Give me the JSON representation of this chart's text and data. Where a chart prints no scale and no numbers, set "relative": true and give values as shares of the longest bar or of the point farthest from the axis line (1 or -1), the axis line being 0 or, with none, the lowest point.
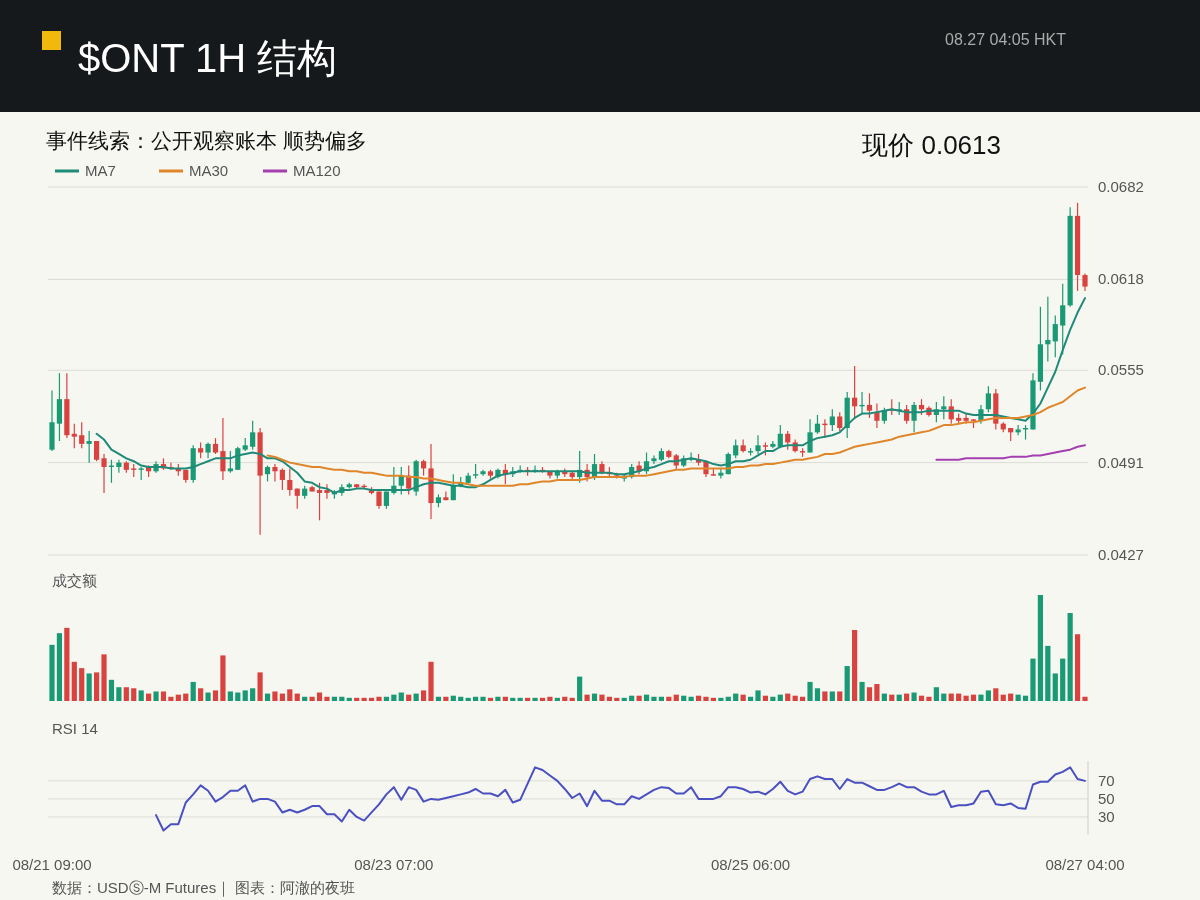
{
  "chart_data": [
    {
      "type": "candlestick",
      "title": "$ONT 1H 结构",
      "subtitle": "事件线索：公开观察账本 顺势偏多",
      "annotations": [
        "08.27 04:05 HKT",
        "现价 0.0613"
      ],
      "categories": [
        null,
        null,
        null,
        null,
        null,
        null,
        null,
        null,
        null,
        null,
        null,
        null,
        null,
        null,
        null,
        null,
        null,
        null,
        null,
        null,
        null,
        null,
        null,
        null,
        null,
        null,
        null,
        null,
        null,
        null,
        null,
        null,
        null,
        null,
        null,
        null,
        null,
        null,
        null,
        null,
        null,
        null,
        null,
        null,
        null,
        null,
        null,
        null,
        null,
        null,
        null,
        null,
        null,
        null,
        null,
        null,
        null,
        null,
        null,
        null,
        null,
        null,
        null,
        null,
        null,
        null,
        null,
        null,
        null,
        null,
        null,
        null,
        null,
        null,
        null,
        null,
        null,
        null,
        null,
        null,
        null,
        null,
        null,
        null,
        null,
        null,
        null,
        null,
        null,
        null,
        null,
        null,
        null,
        null,
        null,
        null,
        null,
        null,
        null,
        null,
        null,
        null,
        null,
        null,
        null,
        null,
        null,
        null,
        null,
        null,
        null,
        null,
        null,
        null,
        null,
        null,
        null,
        null,
        null,
        null,
        null,
        null,
        null,
        null,
        null,
        null,
        null,
        null,
        null,
        null,
        null,
        null,
        null,
        null,
        null,
        null,
        null,
        null,
        null,
        null
      ],
      "ohlc": [
        [
          0.05,
          0.0541,
          0.0499,
          0.0519
        ],
        [
          0.0518,
          0.0553,
          0.0506,
          0.0535
        ],
        [
          0.0535,
          0.0553,
          0.0508,
          0.051
        ],
        [
          0.0511,
          0.0518,
          0.0501,
          0.0509
        ],
        [
          0.051,
          0.0519,
          0.0501,
          0.0504
        ],
        [
          0.0504,
          0.0513,
          0.0491,
          0.0506
        ],
        [
          0.0506,
          0.0506,
          0.0492,
          0.0493
        ],
        [
          0.0494,
          0.0497,
          0.047,
          0.0488
        ],
        [
          0.0488,
          0.0493,
          0.0477,
          0.0489
        ],
        [
          0.0488,
          0.0493,
          0.0484,
          0.0491
        ],
        [
          0.0491,
          0.0492,
          0.0484,
          0.0486
        ],
        [
          0.0487,
          0.049,
          0.0481,
          0.0486
        ],
        [
          0.0486,
          0.0488,
          0.0479,
          0.0487
        ],
        [
          0.0488,
          0.0489,
          0.0481,
          0.0485
        ],
        [
          0.0485,
          0.0492,
          0.0484,
          0.049
        ],
        [
          0.049,
          0.0494,
          0.0486,
          0.0487
        ],
        [
          0.0488,
          0.0491,
          0.0486,
          0.0487
        ],
        [
          0.0487,
          0.049,
          0.0482,
          0.0485
        ],
        [
          0.0486,
          0.0486,
          0.0477,
          0.0479
        ],
        [
          0.0479,
          0.0503,
          0.0477,
          0.0501
        ],
        [
          0.0501,
          0.0505,
          0.0494,
          0.0498
        ],
        [
          0.0498,
          0.0505,
          0.0494,
          0.0504
        ],
        [
          0.0504,
          0.0508,
          0.0497,
          0.0498
        ],
        [
          0.0499,
          0.0522,
          0.0479,
          0.0485
        ],
        [
          0.0485,
          0.0499,
          0.0484,
          0.0487
        ],
        [
          0.0486,
          0.0502,
          0.0486,
          0.0501
        ],
        [
          0.05,
          0.0508,
          0.0499,
          0.0503
        ],
        [
          0.0502,
          0.052,
          0.05,
          0.0512
        ],
        [
          0.0512,
          0.0515,
          0.0441,
          0.0482
        ],
        [
          0.0483,
          0.0489,
          0.0478,
          0.0488
        ],
        [
          0.0488,
          0.049,
          0.0478,
          0.0485
        ],
        [
          0.0486,
          0.0487,
          0.0472,
          0.0479
        ],
        [
          0.0479,
          0.0487,
          0.0468,
          0.0472
        ],
        [
          0.0473,
          0.0473,
          0.0459,
          0.0468
        ],
        [
          0.0468,
          0.0475,
          0.0466,
          0.0473
        ],
        [
          0.0474,
          0.0475,
          0.0471,
          0.0471
        ],
        [
          0.0472,
          0.0477,
          0.0451,
          0.047
        ],
        [
          0.0472,
          0.0476,
          0.0466,
          0.047
        ],
        [
          0.0469,
          0.0472,
          0.0466,
          0.0471
        ],
        [
          0.047,
          0.0476,
          0.0468,
          0.0474
        ],
        [
          0.0474,
          0.0477,
          0.0473,
          0.0476
        ],
        [
          0.0476,
          0.0476,
          0.0473,
          0.0474
        ],
        [
          0.0475,
          0.0476,
          0.0473,
          0.0474
        ],
        [
          0.0472,
          0.0474,
          0.0469,
          0.047
        ],
        [
          0.0471,
          0.0471,
          0.0459,
          0.0461
        ],
        [
          0.0461,
          0.0471,
          0.0459,
          0.0471
        ],
        [
          0.047,
          0.0488,
          0.0469,
          0.0475
        ],
        [
          0.0475,
          0.0488,
          0.0469,
          0.0482
        ],
        [
          0.0482,
          0.0489,
          0.0469,
          0.0473
        ],
        [
          0.0471,
          0.0493,
          0.0468,
          0.0492
        ],
        [
          0.0492,
          0.0493,
          0.0482,
          0.0487
        ],
        [
          0.0487,
          0.0504,
          0.0452,
          0.0463
        ],
        [
          0.0463,
          0.0469,
          0.046,
          0.0467
        ],
        [
          0.0467,
          0.0471,
          0.0465,
          0.0465
        ],
        [
          0.0465,
          0.0483,
          0.0465,
          0.0475
        ],
        [
          0.0475,
          0.0481,
          0.0474,
          0.0477
        ],
        [
          0.0477,
          0.0484,
          0.0476,
          0.0482
        ],
        [
          0.0482,
          0.049,
          0.048,
          0.0483
        ],
        [
          0.0483,
          0.0486,
          0.0482,
          0.0485
        ],
        [
          0.0485,
          0.0486,
          0.048,
          0.0482
        ],
        [
          0.0481,
          0.0487,
          0.048,
          0.0486
        ],
        [
          0.0486,
          0.049,
          0.0476,
          0.0483
        ],
        [
          0.0483,
          0.0488,
          0.0481,
          0.0485
        ],
        [
          0.0485,
          0.0489,
          0.0484,
          0.0486
        ],
        [
          0.0486,
          0.0488,
          0.0482,
          0.0485
        ],
        [
          0.0485,
          0.0489,
          0.0484,
          0.0486
        ],
        [
          0.0486,
          0.0488,
          0.0484,
          0.0485
        ],
        [
          0.0485,
          0.0485,
          0.048,
          0.0482
        ],
        [
          0.0482,
          0.0486,
          0.048,
          0.0485
        ],
        [
          0.0485,
          0.0487,
          0.0481,
          0.0483
        ],
        [
          0.0484,
          0.0485,
          0.0479,
          0.0481
        ],
        [
          0.0481,
          0.0499,
          0.0477,
          0.0486
        ],
        [
          0.0486,
          0.049,
          0.0478,
          0.0481
        ],
        [
          0.0481,
          0.0497,
          0.0479,
          0.049
        ],
        [
          0.049,
          0.0492,
          0.0483,
          0.0484
        ],
        [
          0.0484,
          0.0488,
          0.0481,
          0.0483
        ],
        [
          0.0483,
          0.0484,
          0.048,
          0.0482
        ],
        [
          0.048,
          0.0483,
          0.0478,
          0.0482
        ],
        [
          0.0481,
          0.049,
          0.048,
          0.0488
        ],
        [
          0.0489,
          0.0492,
          0.0483,
          0.0485
        ],
        [
          0.0485,
          0.0498,
          0.0483,
          0.0492
        ],
        [
          0.0492,
          0.0496,
          0.049,
          0.0494
        ],
        [
          0.0493,
          0.0501,
          0.0492,
          0.0499
        ],
        [
          0.0499,
          0.05,
          0.0494,
          0.0495
        ],
        [
          0.0496,
          0.0497,
          0.0486,
          0.0489
        ],
        [
          0.0489,
          0.0496,
          0.0488,
          0.0494
        ],
        [
          0.0493,
          0.0498,
          0.0492,
          0.0494
        ],
        [
          0.0493,
          0.0497,
          0.0489,
          0.0491
        ],
        [
          0.0492,
          0.0492,
          0.0481,
          0.0483
        ],
        [
          0.0483,
          0.0487,
          0.0482,
          0.0482
        ],
        [
          0.0482,
          0.0487,
          0.048,
          0.0484
        ],
        [
          0.0483,
          0.0498,
          0.0483,
          0.0497
        ],
        [
          0.0496,
          0.0507,
          0.0494,
          0.0503
        ],
        [
          0.0503,
          0.0507,
          0.0498,
          0.0499
        ],
        [
          0.0498,
          0.0501,
          0.0496,
          0.0499
        ],
        [
          0.0499,
          0.051,
          0.0497,
          0.0503
        ],
        [
          0.0503,
          0.0505,
          0.0496,
          0.0502
        ],
        [
          0.0502,
          0.0506,
          0.0501,
          0.0504
        ],
        [
          0.0502,
          0.0517,
          0.0501,
          0.0511
        ],
        [
          0.0511,
          0.0513,
          0.05,
          0.0505
        ],
        [
          0.0505,
          0.0507,
          0.0498,
          0.0499
        ],
        [
          0.0499,
          0.0501,
          0.0495,
          0.0498
        ],
        [
          0.0498,
          0.0521,
          0.0498,
          0.0512
        ],
        [
          0.0512,
          0.0524,
          0.0511,
          0.0518
        ],
        [
          0.0518,
          0.0521,
          0.0508,
          0.0517
        ],
        [
          0.0517,
          0.0528,
          0.0513,
          0.0523
        ],
        [
          0.0523,
          0.0526,
          0.0513,
          0.0515
        ],
        [
          0.0515,
          0.054,
          0.0508,
          0.0536
        ],
        [
          0.0536,
          0.0558,
          0.0521,
          0.053
        ],
        [
          0.053,
          0.054,
          0.0525,
          0.0531
        ],
        [
          0.0531,
          0.0539,
          0.0522,
          0.0527
        ],
        [
          0.0526,
          0.0532,
          0.0515,
          0.052
        ],
        [
          0.052,
          0.0529,
          0.0518,
          0.0527
        ],
        [
          0.0528,
          0.0535,
          0.0524,
          0.0527
        ],
        [
          0.0527,
          0.0533,
          0.0524,
          0.0528
        ],
        [
          0.0528,
          0.0531,
          0.0518,
          0.052
        ],
        [
          0.052,
          0.0533,
          0.0512,
          0.0531
        ],
        [
          0.0531,
          0.0535,
          0.0524,
          0.0528
        ],
        [
          0.0529,
          0.053,
          0.0523,
          0.0524
        ],
        [
          0.0524,
          0.0533,
          0.0519,
          0.0528
        ],
        [
          0.0528,
          0.0537,
          0.0521,
          0.053
        ],
        [
          0.053,
          0.0535,
          0.0518,
          0.0521
        ],
        [
          0.0522,
          0.0525,
          0.0518,
          0.052
        ],
        [
          0.0522,
          0.0525,
          0.0518,
          0.052
        ],
        [
          0.0521,
          0.0521,
          0.0515,
          0.052
        ],
        [
          0.052,
          0.0531,
          0.0518,
          0.0528
        ],
        [
          0.0528,
          0.0544,
          0.0526,
          0.0539
        ],
        [
          0.0539,
          0.0542,
          0.0514,
          0.0518
        ],
        [
          0.0518,
          0.0519,
          0.0512,
          0.0514
        ],
        [
          0.0515,
          0.0515,
          0.0506,
          0.0512
        ],
        [
          0.0512,
          0.0517,
          0.051,
          0.0514
        ],
        [
          0.0514,
          0.0517,
          0.0507,
          0.0515
        ],
        [
          0.0514,
          0.0553,
          0.0514,
          0.0548
        ],
        [
          0.0547,
          0.0599,
          0.0541,
          0.0573
        ],
        [
          0.0573,
          0.0606,
          0.0561,
          0.0576
        ],
        [
          0.0575,
          0.0593,
          0.0564,
          0.0587
        ],
        [
          0.0586,
          0.0615,
          0.0566,
          0.06
        ],
        [
          0.06,
          0.0668,
          0.0599,
          0.0662
        ],
        [
          0.0662,
          0.0671,
          0.061,
          0.0621
        ],
        [
          0.0621,
          0.0622,
          0.061,
          0.0613
        ]
      ],
      "colors": [
        "#1a9a74",
        "#1a9a74",
        "#d9433f",
        "#d9433f",
        "#d9433f",
        "#1a9a74",
        "#d9433f",
        "#d9433f",
        "#1a9a74",
        "#1a9a74",
        "#d9433f",
        "#d9433f",
        "#1a9a74",
        "#d9433f",
        "#1a9a74",
        "#d9433f",
        "#d9433f",
        "#d9433f",
        "#d9433f",
        "#1a9a74",
        "#d9433f",
        "#1a9a74",
        "#d9433f",
        "#d9433f",
        "#1a9a74",
        "#1a9a74",
        "#1a9a74",
        "#1a9a74",
        "#d9433f",
        "#1a9a74",
        "#d9433f",
        "#d9433f",
        "#d9433f",
        "#d9433f",
        "#1a9a74",
        "#d9433f",
        "#d9433f",
        "#d9433f",
        "#1a9a74",
        "#1a9a74",
        "#1a9a74",
        "#d9433f",
        "#d9433f",
        "#d9433f",
        "#d9433f",
        "#1a9a74",
        "#1a9a74",
        "#1a9a74",
        "#d9433f",
        "#1a9a74",
        "#d9433f",
        "#d9433f",
        "#1a9a74",
        "#d9433f",
        "#1a9a74",
        "#1a9a74",
        "#1a9a74",
        "#1a9a74",
        "#1a9a74",
        "#d9433f",
        "#1a9a74",
        "#d9433f",
        "#1a9a74",
        "#1a9a74",
        "#d9433f",
        "#1a9a74",
        "#d9433f",
        "#d9433f",
        "#1a9a74",
        "#d9433f",
        "#d9433f",
        "#1a9a74",
        "#d9433f",
        "#1a9a74",
        "#d9433f",
        "#d9433f",
        "#d9433f",
        "#1a9a74",
        "#1a9a74",
        "#d9433f",
        "#1a9a74",
        "#1a9a74",
        "#1a9a74",
        "#d9433f",
        "#d9433f",
        "#1a9a74",
        "#1a9a74",
        "#d9433f",
        "#d9433f",
        "#d9433f",
        "#1a9a74",
        "#1a9a74",
        "#1a9a74",
        "#d9433f",
        "#1a9a74",
        "#1a9a74",
        "#d9433f",
        "#1a9a74",
        "#1a9a74",
        "#d9433f",
        "#d9433f",
        "#d9433f",
        "#1a9a74",
        "#1a9a74",
        "#d9433f",
        "#1a9a74",
        "#d9433f",
        "#1a9a74",
        "#d9433f",
        "#1a9a74",
        "#d9433f",
        "#d9433f",
        "#1a9a74",
        "#d9433f",
        "#1a9a74",
        "#d9433f",
        "#1a9a74",
        "#d9433f",
        "#d9433f",
        "#1a9a74",
        "#1a9a74",
        "#d9433f",
        "#d9433f",
        "#d9433f",
        "#d9433f",
        "#1a9a74",
        "#1a9a74",
        "#d9433f",
        "#d9433f",
        "#d9433f",
        "#1a9a74",
        "#1a9a74",
        "#1a9a74",
        "#1a9a74",
        "#1a9a74",
        "#1a9a74",
        "#1a9a74",
        "#1a9a74",
        "#d9433f",
        "#d9433f"
      ],
      "series": [
        {
          "name": "MA7",
          "type": "line",
          "color": "#1f8a78",
          "values": [
            null,
            null,
            null,
            null,
            null,
            null,
            0.0511,
            0.0507,
            0.05,
            0.0497,
            0.0494,
            0.0492,
            0.0489,
            0.0488,
            0.0488,
            0.0488,
            0.0487,
            0.0487,
            0.0487,
            0.0488,
            0.049,
            0.0492,
            0.0494,
            0.0494,
            0.0494,
            0.0496,
            0.0497,
            0.0498,
            0.0497,
            0.0494,
            0.0494,
            0.0492,
            0.0488,
            0.0484,
            0.0478,
            0.0477,
            0.0474,
            0.0473,
            0.047,
            0.0472,
            0.0472,
            0.0473,
            0.0473,
            0.0472,
            0.0472,
            0.0472,
            0.0472,
            0.0472,
            0.0472,
            0.0474,
            0.0476,
            0.0477,
            0.0477,
            0.0476,
            0.0475,
            0.0475,
            0.0474,
            0.0474,
            0.0476,
            0.0479,
            0.0482,
            0.0483,
            0.0484,
            0.0485,
            0.0485,
            0.0485,
            0.0485,
            0.0485,
            0.0485,
            0.0485,
            0.0485,
            0.0485,
            0.0484,
            0.0484,
            0.0484,
            0.0484,
            0.0483,
            0.0483,
            0.0484,
            0.0485,
            0.0487,
            0.0488,
            0.049,
            0.0492,
            0.0492,
            0.0493,
            0.0494,
            0.0493,
            0.0492,
            0.049,
            0.0489,
            0.049,
            0.0492,
            0.0492,
            0.0493,
            0.0496,
            0.0499,
            0.0499,
            0.0502,
            0.0503,
            0.0503,
            0.0503,
            0.0506,
            0.0508,
            0.0509,
            0.051,
            0.0512,
            0.0517,
            0.0522,
            0.0525,
            0.0525,
            0.0526,
            0.0527,
            0.0528,
            0.0527,
            0.0526,
            0.0526,
            0.0526,
            0.0527,
            0.0527,
            0.0527,
            0.0527,
            0.0527,
            0.0525,
            0.0524,
            0.0524,
            0.0524,
            0.0524,
            0.0523,
            0.0522,
            0.0521,
            0.052,
            0.0525,
            0.0532,
            0.0543,
            0.0554,
            0.0569,
            0.0583,
            0.0595,
            0.0605
          ]
        },
        {
          "name": "MA30",
          "type": "line",
          "color": "#e0862a",
          "values": [
            null,
            null,
            null,
            null,
            null,
            null,
            null,
            null,
            null,
            null,
            null,
            null,
            null,
            null,
            null,
            null,
            null,
            null,
            null,
            null,
            null,
            null,
            null,
            null,
            null,
            null,
            null,
            null,
            null,
            0.0496,
            0.0495,
            0.0493,
            0.0491,
            0.049,
            0.0489,
            0.0488,
            0.0488,
            0.0487,
            0.0486,
            0.0486,
            0.0485,
            0.0485,
            0.0484,
            0.0484,
            0.0483,
            0.0482,
            0.0482,
            0.0482,
            0.0481,
            0.0481,
            0.048,
            0.048,
            0.0479,
            0.0478,
            0.0477,
            0.0477,
            0.0476,
            0.0475,
            0.0475,
            0.0475,
            0.0475,
            0.0475,
            0.0475,
            0.0476,
            0.0476,
            0.0477,
            0.0478,
            0.0478,
            0.0479,
            0.0479,
            0.0479,
            0.0479,
            0.048,
            0.0481,
            0.0481,
            0.0481,
            0.0481,
            0.0481,
            0.0482,
            0.0482,
            0.0482,
            0.0483,
            0.0484,
            0.0485,
            0.0486,
            0.0486,
            0.0487,
            0.0487,
            0.0487,
            0.0487,
            0.0487,
            0.0487,
            0.0488,
            0.0488,
            0.0489,
            0.0489,
            0.049,
            0.049,
            0.0491,
            0.0492,
            0.0493,
            0.0493,
            0.0494,
            0.0495,
            0.0497,
            0.0497,
            0.0498,
            0.05,
            0.0502,
            0.0503,
            0.0504,
            0.0505,
            0.0506,
            0.0507,
            0.0509,
            0.051,
            0.0511,
            0.0512,
            0.0513,
            0.0515,
            0.0517,
            0.0517,
            0.0518,
            0.0519,
            0.0519,
            0.052,
            0.0521,
            0.0522,
            0.0522,
            0.0522,
            0.0522,
            0.0523,
            0.0524,
            0.0526,
            0.0529,
            0.0531,
            0.0533,
            0.0537,
            0.0541,
            0.0543
          ]
        },
        {
          "name": "MA120",
          "type": "line",
          "color": "#a43fb0",
          "values": [
            null,
            null,
            null,
            null,
            null,
            null,
            null,
            null,
            null,
            null,
            null,
            null,
            null,
            null,
            null,
            null,
            null,
            null,
            null,
            null,
            null,
            null,
            null,
            null,
            null,
            null,
            null,
            null,
            null,
            null,
            null,
            null,
            null,
            null,
            null,
            null,
            null,
            null,
            null,
            null,
            null,
            null,
            null,
            null,
            null,
            null,
            null,
            null,
            null,
            null,
            null,
            null,
            null,
            null,
            null,
            null,
            null,
            null,
            null,
            null,
            null,
            null,
            null,
            null,
            null,
            null,
            null,
            null,
            null,
            null,
            null,
            null,
            null,
            null,
            null,
            null,
            null,
            null,
            null,
            null,
            null,
            null,
            null,
            null,
            null,
            null,
            null,
            null,
            null,
            null,
            null,
            null,
            null,
            null,
            null,
            null,
            null,
            null,
            null,
            null,
            null,
            null,
            null,
            null,
            null,
            null,
            null,
            null,
            null,
            null,
            null,
            null,
            null,
            null,
            null,
            null,
            null,
            null,
            null,
            0.0493,
            0.0493,
            0.0493,
            0.0493,
            0.0494,
            0.0494,
            0.0494,
            0.0494,
            0.0494,
            0.0494,
            0.0495,
            0.0495,
            0.0495,
            0.0496,
            0.0496,
            0.0497,
            0.0498,
            0.0499,
            0.05,
            0.0502,
            0.0503
          ]
        }
      ],
      "ylim": [
        0.0427,
        0.0682
      ],
      "yticks": [
        0.0427,
        0.0491,
        0.0555,
        0.0618,
        0.0682
      ],
      "grid": "y",
      "legend": "top left",
      "tick_labels": "y"
    },
    {
      "type": "bar",
      "title": "成交额",
      "relative": true,
      "tick_labels": false,
      "categories": [
        null,
        null,
        null,
        null,
        null,
        null,
        null,
        null,
        null,
        null,
        null,
        null,
        null,
        null,
        null,
        null,
        null,
        null,
        null,
        null,
        null,
        null,
        null,
        null,
        null,
        null,
        null,
        null,
        null,
        null,
        null,
        null,
        null,
        null,
        null,
        null,
        null,
        null,
        null,
        null,
        null,
        null,
        null,
        null,
        null,
        null,
        null,
        null,
        null,
        null,
        null,
        null,
        null,
        null,
        null,
        null,
        null,
        null,
        null,
        null,
        null,
        null,
        null,
        null,
        null,
        null,
        null,
        null,
        null,
        null,
        null,
        null,
        null,
        null,
        null,
        null,
        null,
        null,
        null,
        null,
        null,
        null,
        null,
        null,
        null,
        null,
        null,
        null,
        null,
        null,
        null,
        null,
        null,
        null,
        null,
        null,
        null,
        null,
        null,
        null,
        null,
        null,
        null,
        null,
        null,
        null,
        null,
        null,
        null,
        null,
        null,
        null,
        null,
        null,
        null,
        null,
        null,
        null,
        null,
        null,
        null,
        null,
        null,
        null,
        null,
        null,
        null,
        null,
        null,
        null,
        null,
        null,
        null,
        null,
        null,
        null,
        null,
        null,
        null,
        null
      ],
      "values": [
        0.53,
        0.64,
        0.69,
        0.37,
        0.31,
        0.26,
        0.27,
        0.44,
        0.2,
        0.13,
        0.13,
        0.12,
        0.1,
        0.07,
        0.09,
        0.09,
        0.04,
        0.06,
        0.07,
        0.18,
        0.12,
        0.08,
        0.1,
        0.43,
        0.09,
        0.08,
        0.1,
        0.12,
        0.27,
        0.07,
        0.09,
        0.07,
        0.11,
        0.07,
        0.04,
        0.04,
        0.08,
        0.04,
        0.04,
        0.04,
        0.03,
        0.03,
        0.03,
        0.03,
        0.04,
        0.04,
        0.06,
        0.08,
        0.06,
        0.07,
        0.1,
        0.37,
        0.04,
        0.04,
        0.05,
        0.04,
        0.03,
        0.04,
        0.04,
        0.03,
        0.04,
        0.04,
        0.03,
        0.03,
        0.03,
        0.03,
        0.03,
        0.04,
        0.03,
        0.04,
        0.03,
        0.23,
        0.06,
        0.07,
        0.06,
        0.04,
        0.03,
        0.03,
        0.05,
        0.05,
        0.06,
        0.04,
        0.04,
        0.04,
        0.06,
        0.05,
        0.04,
        0.05,
        0.04,
        0.03,
        0.03,
        0.04,
        0.07,
        0.06,
        0.04,
        0.1,
        0.05,
        0.04,
        0.06,
        0.07,
        0.05,
        0.04,
        0.18,
        0.12,
        0.09,
        0.09,
        0.09,
        0.33,
        0.67,
        0.18,
        0.13,
        0.16,
        0.07,
        0.06,
        0.06,
        0.07,
        0.08,
        0.05,
        0.04,
        0.13,
        0.07,
        0.07,
        0.07,
        0.05,
        0.06,
        0.06,
        0.1,
        0.12,
        0.06,
        0.07,
        0.06,
        0.05,
        0.4,
        1,
        0.52,
        0.26,
        0.4,
        0.83,
        0.63,
        0.04
      ],
      "colors": [
        "#1a9a74",
        "#1a9a74",
        "#d9433f",
        "#d9433f",
        "#d9433f",
        "#1a9a74",
        "#d9433f",
        "#d9433f",
        "#1a9a74",
        "#1a9a74",
        "#d9433f",
        "#d9433f",
        "#1a9a74",
        "#d9433f",
        "#1a9a74",
        "#d9433f",
        "#d9433f",
        "#d9433f",
        "#d9433f",
        "#1a9a74",
        "#d9433f",
        "#1a9a74",
        "#d9433f",
        "#d9433f",
        "#1a9a74",
        "#1a9a74",
        "#1a9a74",
        "#1a9a74",
        "#d9433f",
        "#1a9a74",
        "#d9433f",
        "#d9433f",
        "#d9433f",
        "#d9433f",
        "#1a9a74",
        "#d9433f",
        "#d9433f",
        "#d9433f",
        "#1a9a74",
        "#1a9a74",
        "#1a9a74",
        "#d9433f",
        "#d9433f",
        "#d9433f",
        "#d9433f",
        "#1a9a74",
        "#1a9a74",
        "#1a9a74",
        "#d9433f",
        "#1a9a74",
        "#d9433f",
        "#d9433f",
        "#1a9a74",
        "#d9433f",
        "#1a9a74",
        "#1a9a74",
        "#1a9a74",
        "#1a9a74",
        "#1a9a74",
        "#d9433f",
        "#1a9a74",
        "#d9433f",
        "#1a9a74",
        "#1a9a74",
        "#d9433f",
        "#1a9a74",
        "#d9433f",
        "#d9433f",
        "#1a9a74",
        "#d9433f",
        "#d9433f",
        "#1a9a74",
        "#d9433f",
        "#1a9a74",
        "#d9433f",
        "#d9433f",
        "#d9433f",
        "#1a9a74",
        "#1a9a74",
        "#d9433f",
        "#1a9a74",
        "#1a9a74",
        "#1a9a74",
        "#d9433f",
        "#d9433f",
        "#1a9a74",
        "#1a9a74",
        "#d9433f",
        "#d9433f",
        "#d9433f",
        "#1a9a74",
        "#1a9a74",
        "#1a9a74",
        "#d9433f",
        "#1a9a74",
        "#1a9a74",
        "#d9433f",
        "#1a9a74",
        "#1a9a74",
        "#d9433f",
        "#d9433f",
        "#d9433f",
        "#1a9a74",
        "#1a9a74",
        "#d9433f",
        "#1a9a74",
        "#d9433f",
        "#1a9a74",
        "#d9433f",
        "#1a9a74",
        "#d9433f",
        "#d9433f",
        "#1a9a74",
        "#d9433f",
        "#1a9a74",
        "#d9433f",
        "#1a9a74",
        "#d9433f",
        "#d9433f",
        "#1a9a74",
        "#1a9a74",
        "#d9433f",
        "#d9433f",
        "#d9433f",
        "#d9433f",
        "#1a9a74",
        "#1a9a74",
        "#d9433f",
        "#d9433f",
        "#d9433f",
        "#1a9a74",
        "#1a9a74",
        "#1a9a74",
        "#1a9a74",
        "#1a9a74",
        "#1a9a74",
        "#1a9a74",
        "#1a9a74",
        "#d9433f",
        "#d9433f"
      ]
    },
    {
      "type": "line",
      "title": "RSI 14",
      "annotations": [
        "数据：USDⓈ-M Futures｜ 图表：阿澈的夜班"
      ],
      "categories": [
        "08/21 09:00",
        null,
        null,
        null,
        null,
        null,
        null,
        null,
        null,
        null,
        null,
        null,
        null,
        null,
        null,
        null,
        null,
        null,
        null,
        null,
        null,
        null,
        null,
        null,
        null,
        null,
        null,
        null,
        null,
        null,
        null,
        null,
        null,
        null,
        null,
        null,
        null,
        null,
        null,
        null,
        null,
        null,
        null,
        null,
        null,
        null,
        "08/23 07:00",
        null,
        null,
        null,
        null,
        null,
        null,
        null,
        null,
        null,
        null,
        null,
        null,
        null,
        null,
        null,
        null,
        null,
        null,
        null,
        null,
        null,
        null,
        null,
        null,
        null,
        null,
        null,
        null,
        null,
        null,
        null,
        null,
        null,
        null,
        null,
        null,
        null,
        null,
        null,
        null,
        null,
        null,
        null,
        null,
        null,
        null,
        null,
        "08/25 06:00",
        null,
        null,
        null,
        null,
        null,
        null,
        null,
        null,
        null,
        null,
        null,
        null,
        null,
        null,
        null,
        null,
        null,
        null,
        null,
        null,
        null,
        null,
        null,
        null,
        null,
        null,
        null,
        null,
        null,
        null,
        null,
        null,
        null,
        null,
        null,
        null,
        null,
        null,
        null,
        null,
        null,
        null,
        null,
        null,
        "08/27 04:00"
      ],
      "series": [
        {
          "color": "#4a50c0",
          "values": [
            null,
            null,
            null,
            null,
            null,
            null,
            null,
            null,
            null,
            null,
            null,
            null,
            null,
            null,
            32,
            15,
            22,
            22,
            46,
            55,
            65,
            59,
            47,
            52,
            59,
            59,
            65,
            47,
            50,
            50,
            47,
            35,
            38,
            35,
            38,
            42,
            42,
            33,
            33,
            25,
            38,
            30,
            26,
            35,
            44,
            55,
            63,
            49,
            63,
            60,
            47,
            50,
            49,
            51,
            53,
            55,
            57,
            61,
            56,
            56,
            53,
            60,
            46,
            49,
            67,
            85,
            82,
            76,
            70,
            61,
            51,
            56,
            42,
            59,
            48,
            48,
            44,
            44,
            53,
            50,
            55,
            60,
            63,
            62,
            56,
            56,
            63,
            50,
            50,
            50,
            53,
            63,
            63,
            61,
            57,
            58,
            55,
            61,
            69,
            59,
            55,
            58,
            72,
            75,
            72,
            72,
            61,
            72,
            68,
            68,
            64,
            60,
            60,
            63,
            67,
            63,
            63,
            58,
            55,
            55,
            59,
            41,
            43,
            43,
            45,
            58,
            59,
            44,
            43,
            45,
            40,
            39,
            66,
            69,
            69,
            77,
            80,
            85,
            72,
            70
          ]
        }
      ],
      "ylim": [
        10,
        92
      ],
      "yticks": [
        30,
        50,
        70
      ],
      "grid": "y"
    }
  ]
}
